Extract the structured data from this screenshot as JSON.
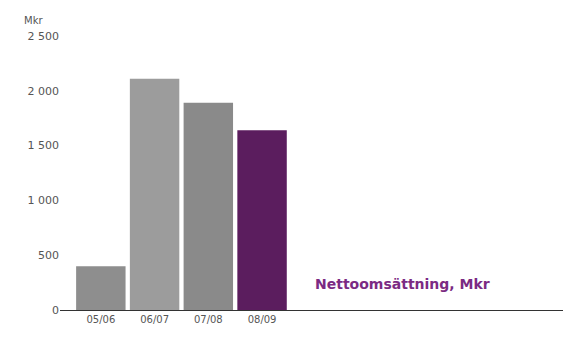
{
  "chart_data": {
    "type": "bar",
    "ylabel": "Mkr",
    "annotations": [
      "Nettoomsättning, Mkr"
    ],
    "categories": [
      "05/06",
      "06/07",
      "07/08",
      "08/09"
    ],
    "values": [
      400,
      2110,
      1890,
      1640
    ],
    "colors": [
      "#8e8e8e",
      "#9c9c9c",
      "#8a8a8a",
      "#5b1d5e"
    ],
    "ylim": [
      0,
      2500
    ],
    "yticks": [
      0,
      500,
      {
        "value": 1000,
        "label": "1 000"
      },
      {
        "value": 1500,
        "label": "1 500"
      },
      {
        "value": 2000,
        "label": "2 000"
      },
      {
        "value": 2500,
        "label": "2 500"
      }
    ],
    "grid": false
  }
}
